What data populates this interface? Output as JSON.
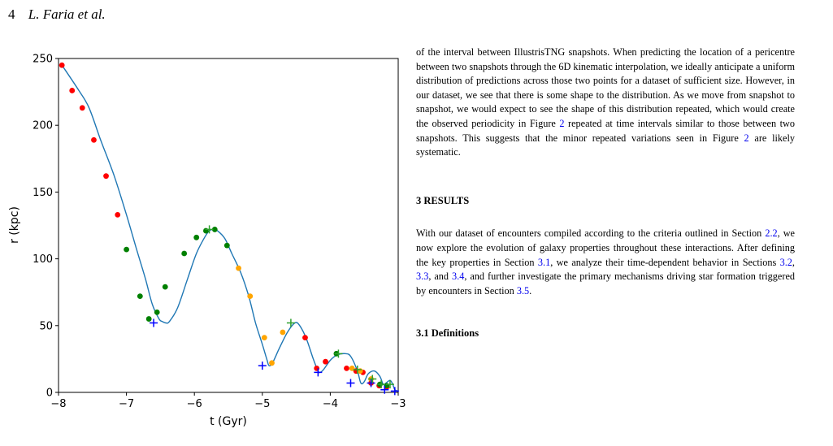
{
  "header": {
    "page_number": "4",
    "authors": "L. Faria et al."
  },
  "chart_data": {
    "type": "scatter",
    "xlabel": "t (Gyr)",
    "ylabel": "r (kpc)",
    "xlim": [
      -8,
      -3
    ],
    "ylim": [
      0,
      250
    ],
    "xticks": [
      "−8",
      "−7",
      "−6",
      "−5",
      "−4",
      "−3"
    ],
    "xtick_values": [
      -8,
      -7,
      -6,
      -5,
      -4,
      -3
    ],
    "yticks": [
      "0",
      "50",
      "100",
      "150",
      "200",
      "250"
    ],
    "ytick_values": [
      0,
      50,
      100,
      150,
      200,
      250
    ],
    "colors": {
      "curve": "#1f77b4",
      "red": "#ff0000",
      "green": "#008000",
      "orange": "#ffa500",
      "pericentre": "#0000ff",
      "apocentre": "#2ca02c"
    },
    "curve": [
      [
        -7.95,
        245
      ],
      [
        -7.7,
        226
      ],
      [
        -7.55,
        213
      ],
      [
        -7.38,
        189
      ],
      [
        -7.18,
        162
      ],
      [
        -7.0,
        133
      ],
      [
        -6.85,
        107
      ],
      [
        -6.72,
        85
      ],
      [
        -6.62,
        66
      ],
      [
        -6.52,
        55
      ],
      [
        -6.47,
        53
      ],
      [
        -6.42,
        52
      ],
      [
        -6.37,
        53
      ],
      [
        -6.25,
        63
      ],
      [
        -6.1,
        85
      ],
      [
        -5.97,
        104
      ],
      [
        -5.85,
        116
      ],
      [
        -5.78,
        121
      ],
      [
        -5.72,
        122
      ],
      [
        -5.66,
        121
      ],
      [
        -5.55,
        115
      ],
      [
        -5.45,
        104
      ],
      [
        -5.32,
        90
      ],
      [
        -5.2,
        72
      ],
      [
        -5.1,
        52
      ],
      [
        -5.0,
        36
      ],
      [
        -4.93,
        24
      ],
      [
        -4.9,
        20
      ],
      [
        -4.85,
        22
      ],
      [
        -4.75,
        33
      ],
      [
        -4.63,
        45
      ],
      [
        -4.52,
        52
      ],
      [
        -4.45,
        50
      ],
      [
        -4.35,
        40
      ],
      [
        -4.25,
        25
      ],
      [
        -4.18,
        16
      ],
      [
        -4.15,
        15
      ],
      [
        -4.1,
        17
      ],
      [
        -4.0,
        24
      ],
      [
        -3.9,
        28
      ],
      [
        -3.78,
        29
      ],
      [
        -3.7,
        27
      ],
      [
        -3.6,
        16
      ],
      [
        -3.55,
        7
      ],
      [
        -3.5,
        8
      ],
      [
        -3.44,
        14
      ],
      [
        -3.35,
        16
      ],
      [
        -3.27,
        12
      ],
      [
        -3.22,
        6
      ],
      [
        -3.18,
        7
      ],
      [
        -3.12,
        9
      ],
      [
        -3.08,
        6
      ],
      [
        -3.05,
        2
      ],
      [
        -3.0,
        1
      ]
    ],
    "red_points": [
      [
        -7.95,
        245
      ],
      [
        -7.8,
        226
      ],
      [
        -7.65,
        213
      ],
      [
        -7.48,
        189
      ],
      [
        -7.3,
        162
      ],
      [
        -7.13,
        133
      ],
      [
        -4.37,
        41
      ],
      [
        -4.2,
        18
      ],
      [
        -4.07,
        23
      ],
      [
        -3.76,
        18
      ],
      [
        -3.62,
        16
      ],
      [
        -3.52,
        15
      ],
      [
        -3.4,
        7
      ],
      [
        -3.28,
        5
      ],
      [
        -3.17,
        4
      ]
    ],
    "green_points": [
      [
        -7.0,
        107
      ],
      [
        -6.8,
        72
      ],
      [
        -6.67,
        55
      ],
      [
        -6.55,
        60
      ],
      [
        -6.43,
        79
      ],
      [
        -6.15,
        104
      ],
      [
        -5.97,
        116
      ],
      [
        -5.83,
        121
      ],
      [
        -5.7,
        122
      ],
      [
        -5.52,
        110
      ],
      [
        -3.91,
        29
      ],
      [
        -3.27,
        6
      ],
      [
        -3.17,
        5
      ]
    ],
    "orange_points": [
      [
        -5.35,
        93
      ],
      [
        -5.18,
        72
      ],
      [
        -4.97,
        41
      ],
      [
        -4.86,
        22
      ],
      [
        -4.7,
        45
      ],
      [
        -3.68,
        18
      ],
      [
        -3.56,
        16
      ],
      [
        -3.4,
        10
      ]
    ],
    "pericentres": [
      [
        -6.6,
        52
      ],
      [
        -5.0,
        20
      ],
      [
        -4.18,
        15
      ],
      [
        -3.7,
        7
      ],
      [
        -3.4,
        7
      ],
      [
        -3.2,
        2
      ],
      [
        -3.05,
        1
      ]
    ],
    "apocentres": [
      [
        -5.78,
        122
      ],
      [
        -4.58,
        52
      ],
      [
        -3.88,
        29
      ],
      [
        -3.6,
        17
      ],
      [
        -3.38,
        10
      ],
      [
        -3.25,
        6
      ],
      [
        -3.12,
        6
      ]
    ]
  },
  "paragraphs": {
    "p1": [
      "of the interval between IllustrisTNG snapshots. When predicting the location of a pericentre between two snapshots through the 6D kinematic interpolation, we ideally anticipate a uniform distribution of predictions across those two points for a dataset of sufficient size. However, in our dataset, we see that there is some shape to the distribution. As we move from snapshot to snapshot, we would expect to see the shape of this distribution repeated, which would create the observed periodicity in Figure ",
      "2",
      " repeated at time intervals similar to those between two snapshots. This suggests that the minor repeated variations seen in Figure ",
      "2",
      " are likely systematic."
    ],
    "section_title": "3  RESULTS",
    "p2": [
      "With our dataset of encounters compiled according to the criteria outlined in Section ",
      "2.2",
      ", we now explore the evolution of galaxy properties throughout these interactions. After defining the key properties in Section ",
      "3.1",
      ", we analyze their time-dependent behavior in Sections ",
      "3.2",
      ", ",
      "3.3",
      ", and ",
      "3.4",
      ", and further investigate the primary mechanisms driving star formation triggered by encounters in Section ",
      "3.5",
      "."
    ],
    "subsection_title": "3.1  Definitions"
  }
}
